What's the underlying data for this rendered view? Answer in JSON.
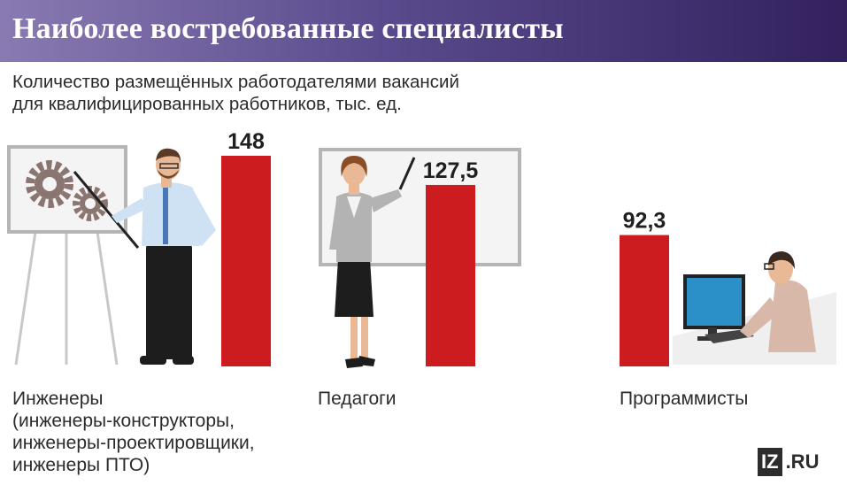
{
  "header": {
    "title": "Наиболее востребованные специалисты"
  },
  "subtitle": {
    "line1": "Количество размещённых работодателями вакансий",
    "line2": "для квалифицированных работников, тыс. ед."
  },
  "chart_data": {
    "type": "bar",
    "title": "Наиболее востребованные специалисты",
    "subtitle": "Количество размещённых работодателями вакансий для квалифицированных работников, тыс. ед.",
    "categories": [
      "Инженеры",
      "Педагоги",
      "Программисты"
    ],
    "values": [
      148,
      127.5,
      92.3
    ],
    "value_labels": [
      "148",
      "127,5",
      "92,3"
    ],
    "ylim": [
      0,
      148
    ],
    "grid": false,
    "bar_color": "#cc1c1f"
  },
  "labels": {
    "engineers": [
      "Инженеры",
      "(инженеры-конструкторы,",
      "инженеры-проектировщики,",
      "инженеры ПТО)"
    ],
    "teachers": [
      "Педагоги"
    ],
    "programmers": [
      "Программисты"
    ]
  },
  "logo": {
    "box": "IZ",
    "text": ".RU"
  },
  "colors": {
    "header_gradient": [
      "#8a7ab2",
      "#33215e"
    ],
    "bar": "#cc1c1f",
    "text": "#2b2b2b"
  }
}
